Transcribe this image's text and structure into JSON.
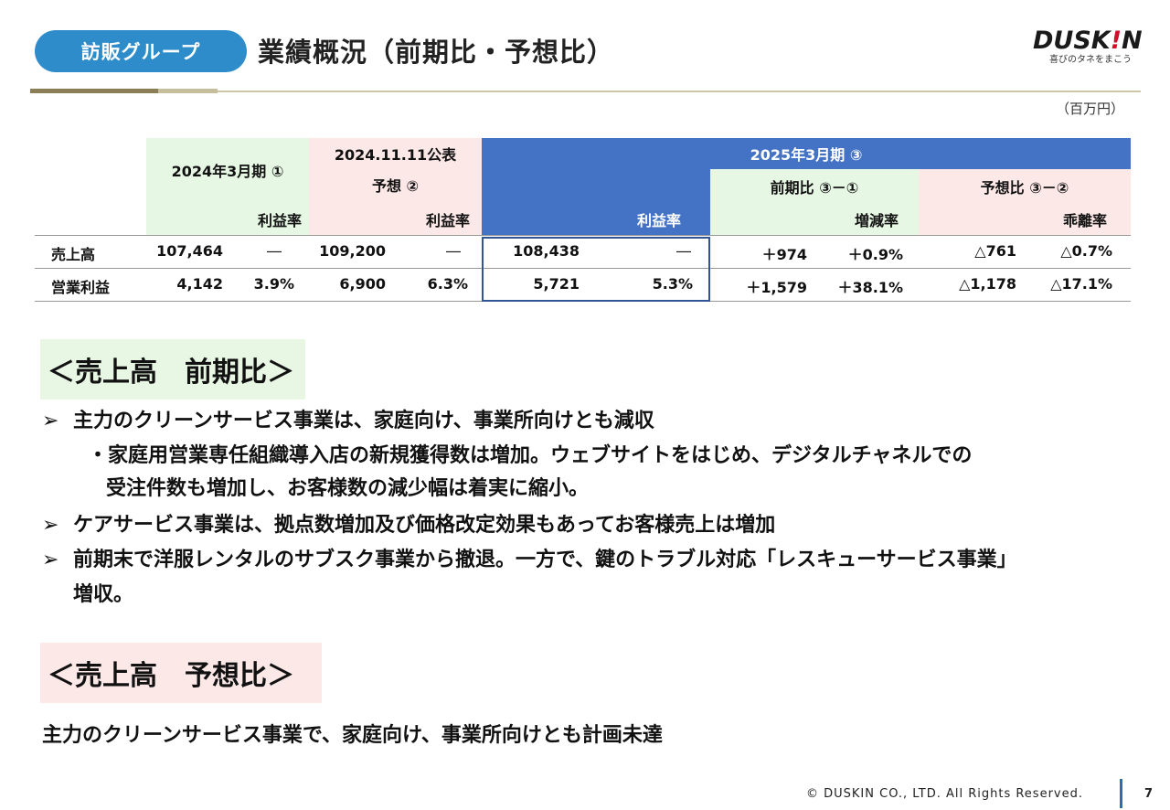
{
  "header": {
    "group_label": "訪販グループ",
    "title": "業績概況（前期比・予想比）",
    "logo_text_main": "DUSK",
    "logo_text_bang": "!",
    "logo_text_end": "N",
    "logo_tagline": "喜びのタネをまこう",
    "unit": "（百万円）"
  },
  "table": {
    "h_2024": "2024年3月期 ①",
    "h_forecast_line1": "2024.11.11公表",
    "h_forecast_line2": "予想 ②",
    "h_2025": "2025年3月期 ③",
    "h_yoy": "前期比 ③－①",
    "h_vs_forecast": "予想比 ③－②",
    "sub_margin": "利益率",
    "sub_change_rate": "増減率",
    "sub_deviation_rate": "乖離率",
    "rows": [
      {
        "label": "売上高",
        "a_value": "107,464",
        "a_margin": "―",
        "b_value": "109,200",
        "b_margin": "―",
        "c_value": "108,438",
        "c_margin": "―",
        "yoy_value": "＋974",
        "yoy_rate": "＋0.9%",
        "fc_value": "△761",
        "fc_rate": "△0.7%"
      },
      {
        "label": "営業利益",
        "a_value": "4,142",
        "a_margin": "3.9%",
        "b_value": "6,900",
        "b_margin": "6.3%",
        "c_value": "5,721",
        "c_margin": "5.3%",
        "yoy_value": "＋1,579",
        "yoy_rate": "＋38.1%",
        "fc_value": "△1,178",
        "fc_rate": "△17.1%"
      }
    ]
  },
  "section1": {
    "heading": "＜売上高　前期比＞",
    "bullet_char": "➢",
    "b1": "主力のクリーンサービス事業は、家庭向け、事業所向けとも減収",
    "b1_sub1": "・家庭用営業専任組織導入店の新規獲得数は増加。ウェブサイトをはじめ、デジタルチャネルでの",
    "b1_sub2": "受注件数も増加し、お客様数の減少幅は着実に縮小。",
    "b2": "ケアサービス事業は、拠点数増加及び価格改定効果もあってお客様売上は増加",
    "b3_line1": "前期末で洋服レンタルのサブスク事業から撤退。一方で、鍵のトラブル対応「レスキューサービス事業」",
    "b3_line2": "増収。"
  },
  "section2": {
    "heading": "＜売上高　予想比＞",
    "text": "主力のクリーンサービス事業で、家庭向け、事業所向けとも計画未達"
  },
  "footer": {
    "copyright": "© DUSKIN CO., LTD. All Rights Reserved.",
    "page": "7"
  }
}
